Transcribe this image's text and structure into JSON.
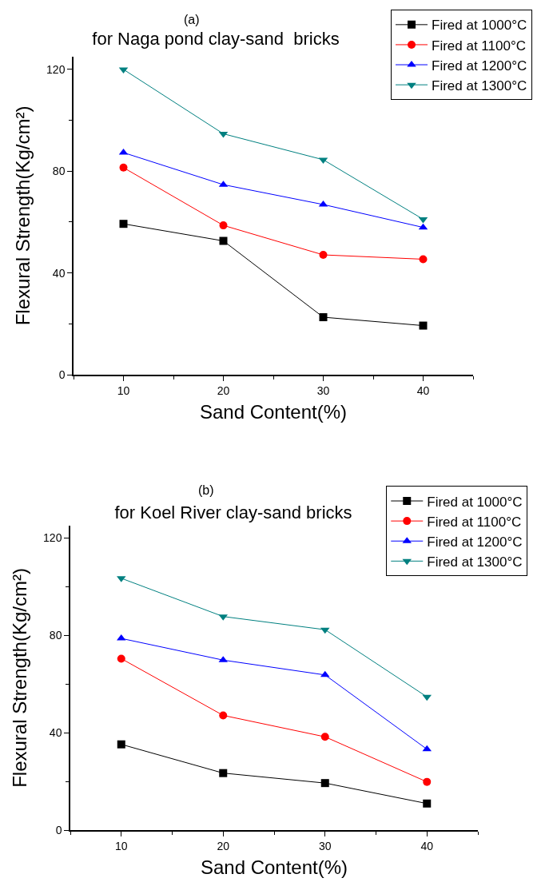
{
  "chart_data": [
    {
      "type": "line",
      "title": "for Naga pond clay-sand  bricks",
      "annotations": [
        "(a)"
      ],
      "xlabel": "Sand Content(%)",
      "ylabel": "Flexural Strength(Kg/cm²)",
      "x": [
        10,
        20,
        30,
        40
      ],
      "xlim": [
        5,
        45
      ],
      "xticks": [
        10,
        20,
        30,
        40
      ],
      "ylim": [
        0,
        125
      ],
      "yticks": [
        0,
        40,
        80,
        120
      ],
      "grid": false,
      "legend": "top right",
      "series": [
        {
          "name": "Fired at 1000°C",
          "color": "#000000",
          "marker": "square",
          "values": [
            59.3,
            52.6,
            22.6,
            19.3
          ]
        },
        {
          "name": "Fired at 1100°C",
          "color": "#ff0000",
          "marker": "circle",
          "values": [
            81.4,
            58.7,
            47.1,
            45.4
          ]
        },
        {
          "name": "Fired at 1200°C",
          "color": "#0000ff",
          "marker": "triangle",
          "values": [
            87.3,
            74.7,
            66.9,
            57.9
          ]
        },
        {
          "name": "Fired at 1300°C",
          "color": "#008080",
          "marker": "triangle-down",
          "values": [
            120,
            94.7,
            84.5,
            61.1
          ]
        }
      ]
    },
    {
      "type": "line",
      "title": "for Koel River clay-sand bricks",
      "annotations": [
        "(b)"
      ],
      "xlabel": "Sand Content(%)",
      "ylabel": "Flexural Strength(Kg/cm²)",
      "x": [
        10,
        20,
        30,
        40
      ],
      "xlim": [
        5,
        45
      ],
      "xticks": [
        10,
        20,
        30,
        40
      ],
      "ylim": [
        0,
        125
      ],
      "yticks": [
        0,
        40,
        80,
        120
      ],
      "grid": false,
      "legend": "top right",
      "series": [
        {
          "name": "Fired at 1000°C",
          "color": "#000000",
          "marker": "square",
          "values": [
            35.2,
            23.4,
            19.3,
            10.9
          ]
        },
        {
          "name": "Fired at 1100°C",
          "color": "#ff0000",
          "marker": "circle",
          "values": [
            70.4,
            47.1,
            38.3,
            19.8
          ]
        },
        {
          "name": "Fired at 1200°C",
          "color": "#0000ff",
          "marker": "triangle",
          "values": [
            78.7,
            69.8,
            63.7,
            33.2
          ]
        },
        {
          "name": "Fired at 1300°C",
          "color": "#008080",
          "marker": "triangle-down",
          "values": [
            103.4,
            87.7,
            82.3,
            54.7
          ]
        }
      ]
    }
  ]
}
